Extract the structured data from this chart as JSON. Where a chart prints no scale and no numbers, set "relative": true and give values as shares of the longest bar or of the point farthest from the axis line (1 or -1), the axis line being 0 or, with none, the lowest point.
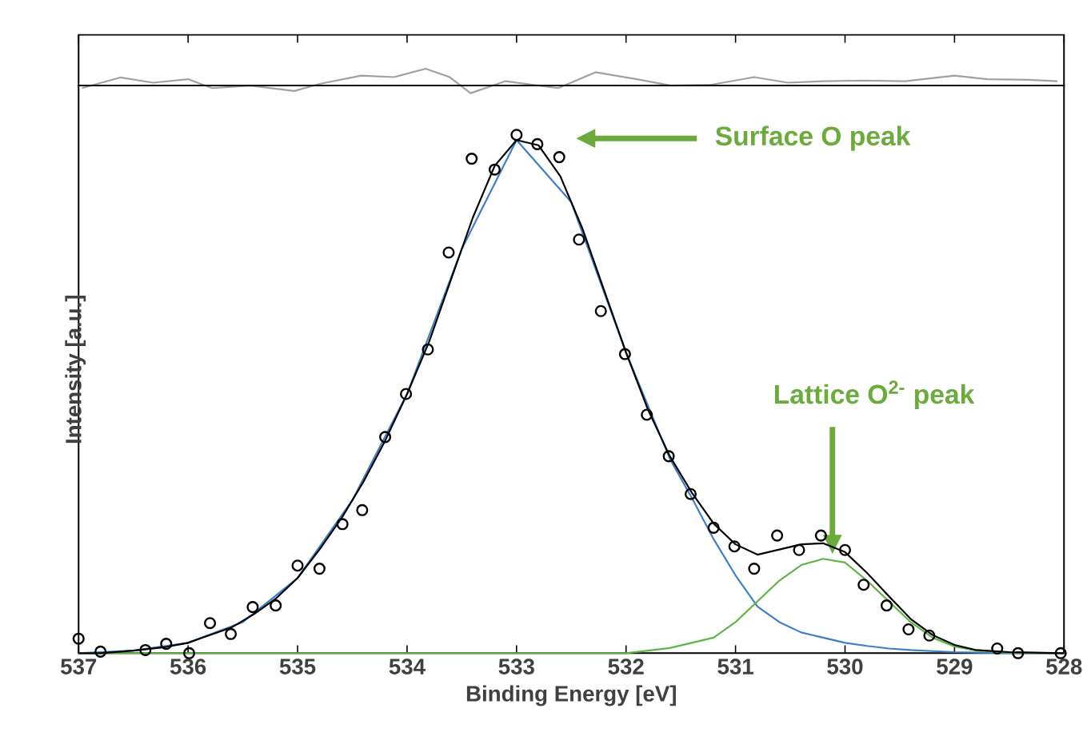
{
  "chart_data": [
    {
      "type": "line",
      "relative": true,
      "xlim": [
        537,
        528
      ],
      "xticks": [
        537,
        536,
        535,
        534,
        533,
        532,
        531,
        530,
        529,
        528
      ],
      "tick_labels": false,
      "series": [
        {
          "color": "#a0a0a0",
          "x": [
            536.97,
            536.62,
            536.32,
            536.0,
            535.78,
            535.43,
            535.03,
            534.8,
            534.42,
            534.12,
            533.83,
            533.61,
            533.42,
            533.1,
            532.62,
            532.28,
            531.9,
            531.59,
            531.22,
            530.83,
            530.52,
            530.2,
            529.83,
            529.45,
            529.0,
            528.7,
            528.32,
            528.06
          ],
          "values": [
            -0.15,
            0.48,
            0.17,
            0.38,
            -0.15,
            0,
            -0.32,
            0.1,
            0.59,
            0.5,
            1.0,
            0.5,
            -0.45,
            0.26,
            -0.15,
            0.79,
            0.38,
            0,
            0.05,
            0.5,
            0.17,
            0.26,
            0.3,
            0.26,
            0.59,
            0.38,
            0.34,
            0.26
          ]
        }
      ]
    },
    {
      "type": "line",
      "relative": true,
      "xlabel": "Binding Energy [eV]",
      "ylabel": "Intensity [a.u.]",
      "xlim": [
        537,
        528
      ],
      "xticks": [
        537,
        536,
        535,
        534,
        533,
        532,
        531,
        530,
        529,
        528
      ],
      "annotations": [
        "Surface O peak",
        "Lattice O$^{2-}$ peak"
      ],
      "series": [
        {
          "color": "#3a7fc8",
          "x": [
            537,
            536.5,
            536,
            535.5,
            535,
            534.5,
            534,
            533.5,
            533,
            532.5,
            532,
            531.6,
            531.4,
            531.2,
            531.0,
            530.8,
            530.6,
            530.4,
            530.2,
            530.0,
            529.8,
            529.6,
            529.4,
            529.2,
            529.0,
            528.5,
            528
          ],
          "values": [
            0,
            0.005,
            0.02,
            0.06,
            0.145,
            0.295,
            0.5,
            0.78,
            0.99,
            0.87,
            0.58,
            0.375,
            0.3,
            0.22,
            0.15,
            0.09,
            0.06,
            0.04,
            0.03,
            0.02,
            0.014,
            0.009,
            0.006,
            0.004,
            0.002,
            0,
            0
          ]
        },
        {
          "color": "#5db345",
          "x": [
            537,
            532.0,
            531.6,
            531.4,
            531.2,
            531.0,
            530.8,
            530.6,
            530.4,
            530.2,
            530.0,
            529.8,
            529.6,
            529.4,
            529.2,
            529.0,
            528.8,
            528.5,
            528
          ],
          "values": [
            0,
            0,
            0.01,
            0.02,
            0.03,
            0.06,
            0.1,
            0.14,
            0.17,
            0.182,
            0.175,
            0.14,
            0.1,
            0.06,
            0.03,
            0.013,
            0.005,
            0.001,
            0
          ]
        },
        {
          "color": "#000000",
          "x": [
            537,
            536.8,
            536.5,
            536.2,
            536.0,
            535.8,
            535.6,
            535.4,
            535.2,
            535.0,
            534.8,
            534.6,
            534.4,
            534.2,
            534.0,
            533.8,
            533.6,
            533.4,
            533.2,
            533.0,
            532.8,
            532.6,
            532.4,
            532.2,
            532.0,
            531.8,
            531.6,
            531.4,
            531.2,
            531.0,
            530.8,
            530.6,
            530.4,
            530.2,
            530.0,
            529.8,
            529.6,
            529.4,
            529.2,
            529.0,
            528.8,
            528.5,
            528.0
          ],
          "values": [
            0,
            0,
            0.005,
            0.012,
            0.02,
            0.035,
            0.05,
            0.075,
            0.105,
            0.145,
            0.2,
            0.26,
            0.33,
            0.41,
            0.5,
            0.6,
            0.72,
            0.84,
            0.94,
            0.99,
            0.98,
            0.92,
            0.82,
            0.7,
            0.58,
            0.47,
            0.38,
            0.31,
            0.25,
            0.21,
            0.19,
            0.2,
            0.21,
            0.212,
            0.195,
            0.155,
            0.11,
            0.066,
            0.035,
            0.016,
            0.006,
            0.002,
            0
          ]
        },
        {
          "type": "scatter",
          "marker": "circle",
          "color": "#000000",
          "x": [
            537.0,
            536.8,
            536.39,
            536.2,
            535.99,
            535.8,
            535.61,
            535.41,
            535.2,
            535.0,
            534.8,
            534.59,
            534.41,
            534.2,
            534.01,
            533.81,
            533.62,
            533.41,
            533.2,
            533.0,
            532.81,
            532.61,
            532.43,
            532.23,
            532.01,
            531.81,
            531.61,
            531.41,
            531.2,
            531.01,
            530.83,
            530.62,
            530.42,
            530.22,
            530.0,
            529.83,
            529.62,
            529.42,
            529.23,
            528.61,
            528.42,
            528.03
          ],
          "values": [
            0.028,
            0.003,
            0.006,
            0.018,
            0.0,
            0.058,
            0.037,
            0.089,
            0.092,
            0.169,
            0.163,
            0.249,
            0.276,
            0.417,
            0.5,
            0.586,
            0.773,
            0.954,
            0.933,
            1.0,
            0.982,
            0.957,
            0.798,
            0.66,
            0.577,
            0.46,
            0.38,
            0.307,
            0.242,
            0.206,
            0.163,
            0.227,
            0.199,
            0.227,
            0.199,
            0.132,
            0.092,
            0.046,
            0.034,
            0.009,
            0.0,
            0.0
          ]
        }
      ]
    }
  ]
}
